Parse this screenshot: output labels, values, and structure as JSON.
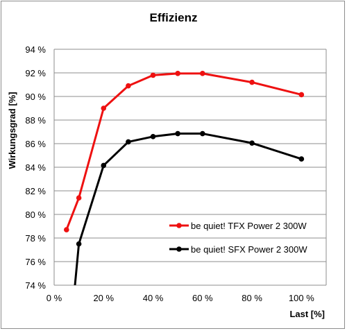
{
  "chart_data": {
    "type": "line",
    "title": "Effizienz",
    "xlabel": "Last [%]",
    "ylabel": "Wirkungsgrad [%]",
    "xlim": [
      0,
      110
    ],
    "ylim": [
      74,
      94
    ],
    "x_ticks": [
      0,
      20,
      40,
      60,
      80,
      100
    ],
    "x_tick_labels": [
      "0 %",
      "20 %",
      "40 %",
      "60 %",
      "80 %",
      "100 %"
    ],
    "y_ticks": [
      74,
      76,
      78,
      80,
      82,
      84,
      86,
      88,
      90,
      92,
      94
    ],
    "y_tick_labels": [
      "74 %",
      "76 %",
      "78 %",
      "80 %",
      "82 %",
      "84 %",
      "86 %",
      "88 %",
      "90 %",
      "92 %",
      "94 %"
    ],
    "grid": "horizontal",
    "legend_position": "bottom-right",
    "series": [
      {
        "name": "be quiet! TFX Power 2 300W",
        "color": "#ee1111",
        "x": [
          5,
          10,
          20,
          30,
          40,
          50,
          60,
          80,
          100
        ],
        "y": [
          78.7,
          81.4,
          89.0,
          90.9,
          91.8,
          91.95,
          91.95,
          91.2,
          90.15
        ]
      },
      {
        "name": "be quiet! SFX Power 2 300W",
        "color": "#000000",
        "x": [
          10,
          20,
          30,
          40,
          50,
          60,
          80,
          100
        ],
        "y": [
          77.5,
          84.15,
          86.15,
          86.6,
          86.85,
          86.85,
          86.05,
          84.7
        ],
        "entry_x": 8.2
      }
    ]
  }
}
